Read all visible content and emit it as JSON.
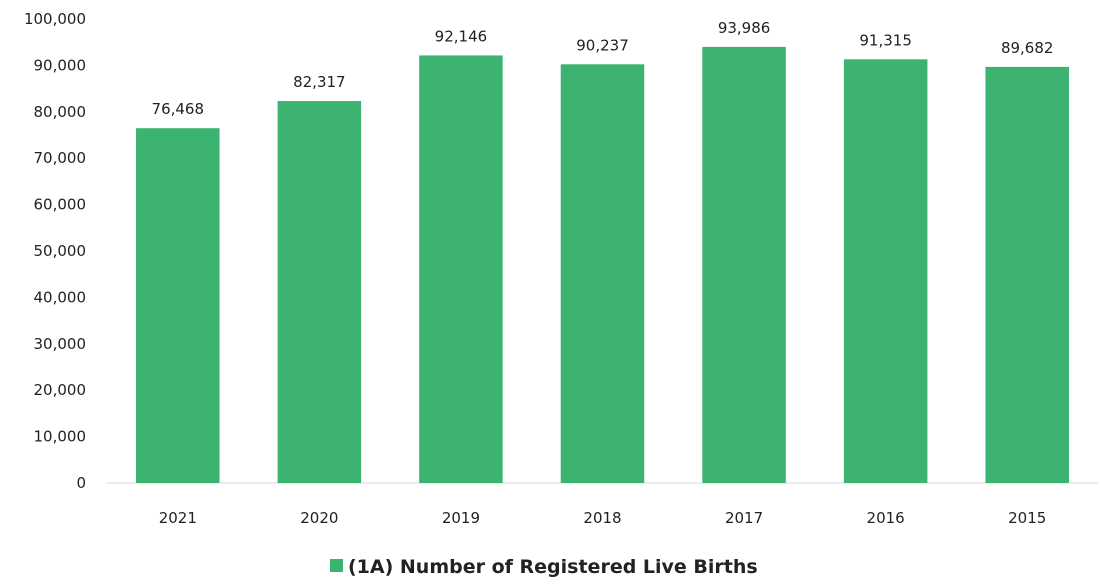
{
  "chart_data": {
    "type": "bar",
    "categories": [
      "2021",
      "2020",
      "2019",
      "2018",
      "2017",
      "2016",
      "2015"
    ],
    "series": [
      {
        "name": "(1A) Number of Registered Live Births",
        "values": [
          76468,
          82317,
          92146,
          90237,
          93986,
          91315,
          89682
        ],
        "color": "#3cb371"
      }
    ],
    "data_labels": [
      "76,468",
      "82,317",
      "92,146",
      "90,237",
      "93,986",
      "91,315",
      "89,682"
    ],
    "y_ticks": [
      "0",
      "10,000",
      "20,000",
      "30,000",
      "40,000",
      "50,000",
      "60,000",
      "70,000",
      "80,000",
      "90,000",
      "100,000"
    ],
    "ylim": [
      0,
      100000
    ],
    "grid": false,
    "legend": {
      "position": "bottom-center",
      "label": "(1A) Number of Registered Live Births",
      "color": "#3cb371"
    },
    "axis_color": "#d9d9d9"
  }
}
